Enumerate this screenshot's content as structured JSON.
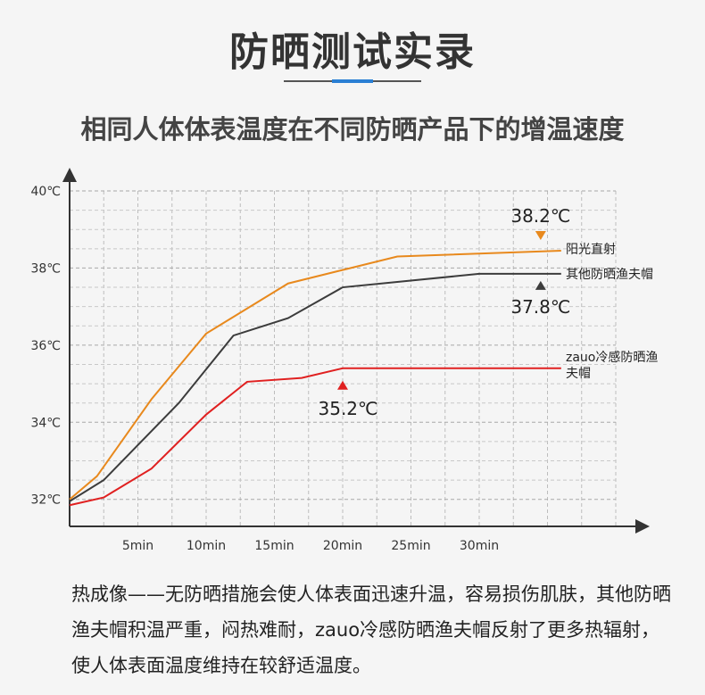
{
  "title": "防晒测试实录",
  "subtitle": "相同人体体表温度在不同防晒产品下的增温速度",
  "description": "热成像——无防晒措施会使人体表面迅速升温，容易损伤肌肤，其他防晒渔夫帽积温严重，闷热难耐，zauo冷感防晒渔夫帽反射了更多热辐射，使人体表面温度维持在较舒适温度。",
  "colors": {
    "sunlight": "#e8891d",
    "other_hat": "#3c3c3c",
    "zauo_hat": "#e02020",
    "accent": "#2a7fd4"
  },
  "chart_data": {
    "type": "line",
    "x_tick_labels": [
      "5min",
      "10min",
      "15min",
      "20min",
      "25min",
      "30min"
    ],
    "x_ticks": [
      5,
      10,
      15,
      20,
      25,
      30
    ],
    "y_tick_labels": [
      "32℃",
      "34℃",
      "36℃",
      "38℃",
      "40℃"
    ],
    "y_ticks": [
      32,
      34,
      36,
      38,
      40
    ],
    "xlim": [
      0,
      40
    ],
    "ylim": [
      31.3,
      40
    ],
    "grid": true,
    "series": [
      {
        "name": "阳光直射",
        "color": "#e8891d",
        "x": [
          0,
          2,
          6,
          10,
          16,
          20,
          24,
          36
        ],
        "y": [
          32.0,
          32.6,
          34.6,
          36.3,
          37.6,
          37.95,
          38.3,
          38.45
        ],
        "peak_label": "38.2℃",
        "marker": "down"
      },
      {
        "name": "其他防晒渔夫帽",
        "color": "#3c3c3c",
        "x": [
          0,
          2.5,
          8,
          12,
          16,
          20,
          30,
          36
        ],
        "y": [
          31.95,
          32.5,
          34.5,
          36.25,
          36.7,
          37.5,
          37.85,
          37.85
        ],
        "peak_label": "37.8℃",
        "marker": "up"
      },
      {
        "name": "zauo冷感防晒渔夫帽",
        "color": "#e02020",
        "x": [
          0,
          2.5,
          6,
          10,
          13,
          17,
          20,
          36
        ],
        "y": [
          31.85,
          32.05,
          32.8,
          34.2,
          35.05,
          35.15,
          35.4,
          35.4
        ],
        "peak_label": "35.2℃",
        "marker": "up"
      }
    ]
  }
}
